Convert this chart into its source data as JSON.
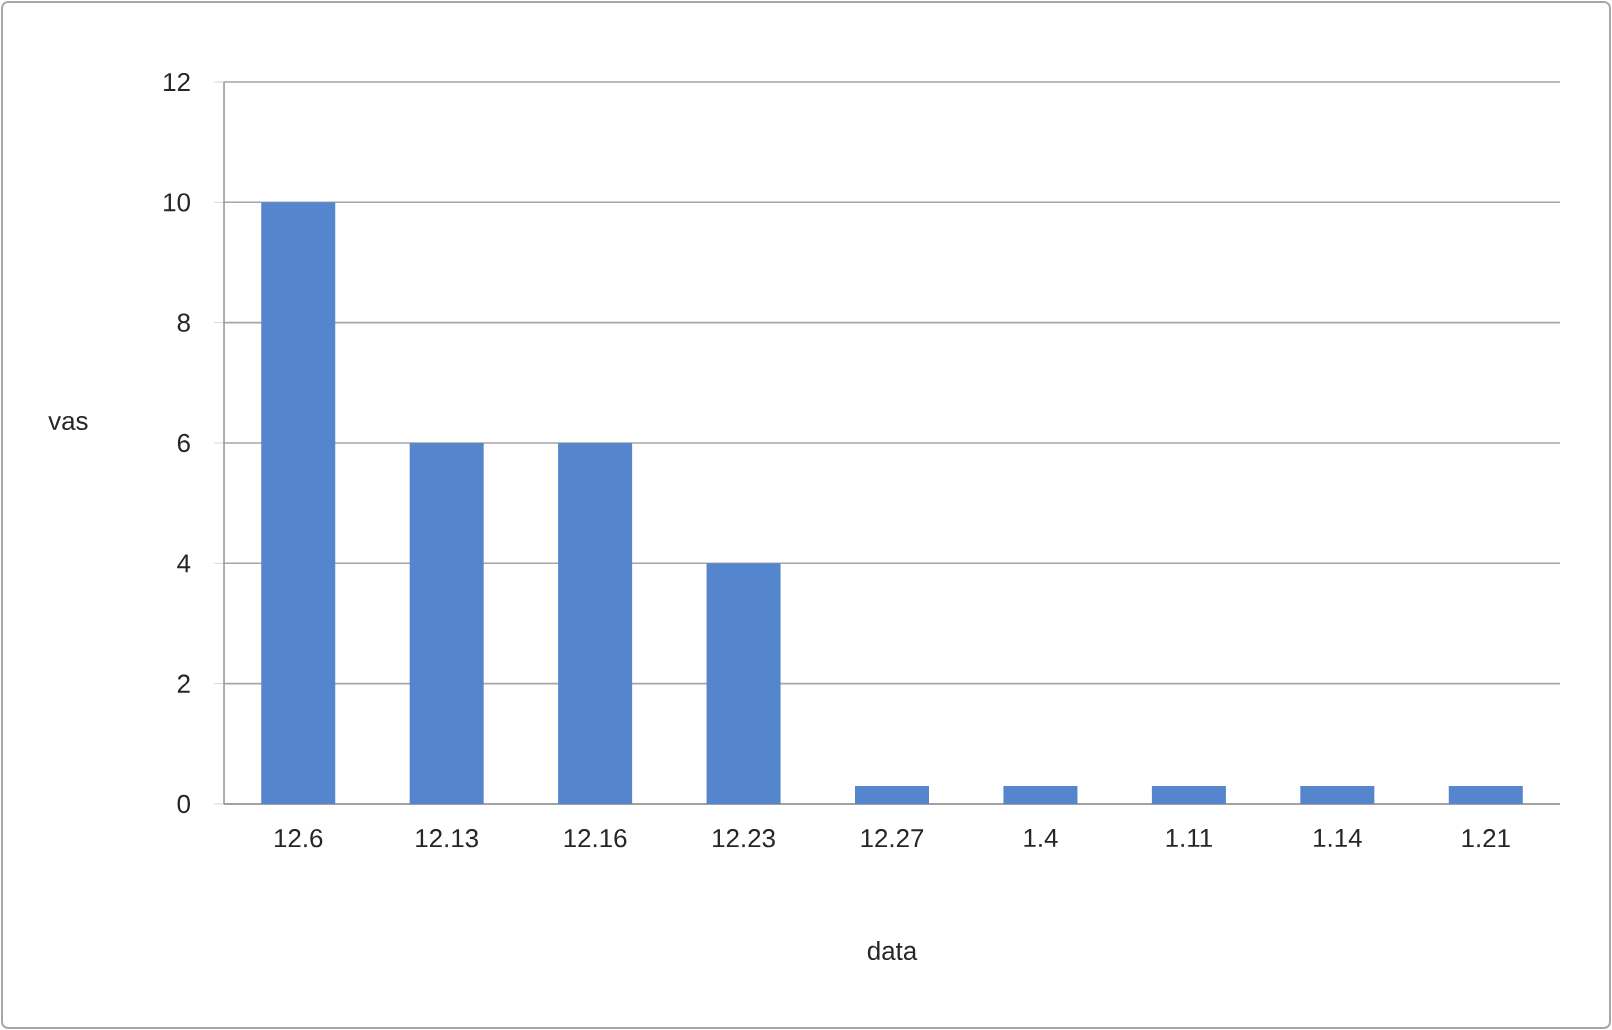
{
  "chart_data": {
    "type": "bar",
    "xlabel": "data",
    "ylabel": "vas",
    "categories": [
      "12.6",
      "12.13",
      "12.16",
      "12.23",
      "12.27",
      "1.4",
      "1.11",
      "1.14",
      "1.21"
    ],
    "values": [
      10,
      6,
      6,
      4,
      0.3,
      0.3,
      0.3,
      0.3,
      0.3
    ],
    "color": "#5585cc",
    "ylim": [
      0,
      12
    ],
    "yticks": [
      0,
      2,
      4,
      6,
      8,
      10,
      12
    ],
    "grid": "y"
  }
}
